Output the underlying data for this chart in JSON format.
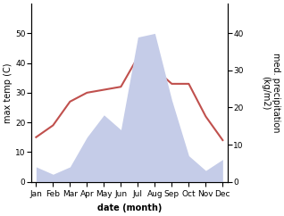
{
  "months": [
    "Jan",
    "Feb",
    "Mar",
    "Apr",
    "May",
    "Jun",
    "Jul",
    "Aug",
    "Sep",
    "Oct",
    "Nov",
    "Dec"
  ],
  "temperature": [
    15,
    19,
    27,
    30,
    31,
    32,
    42,
    38,
    33,
    33,
    22,
    14
  ],
  "precipitation": [
    4,
    2,
    4,
    12,
    18,
    14,
    39,
    40,
    22,
    7,
    3,
    6
  ],
  "temp_color": "#c0504d",
  "precip_fill_color": "#c5cce8",
  "temp_ylim": [
    0,
    60
  ],
  "precip_ylim": [
    0,
    48
  ],
  "temp_yticks": [
    0,
    10,
    20,
    30,
    40,
    50
  ],
  "precip_yticks": [
    0,
    10,
    20,
    30,
    40
  ],
  "ylabel_left": "max temp (C)",
  "ylabel_right": "med. precipitation\n(kg/m2)",
  "xlabel": "date (month)",
  "label_fontsize": 7,
  "tick_fontsize": 6.5
}
